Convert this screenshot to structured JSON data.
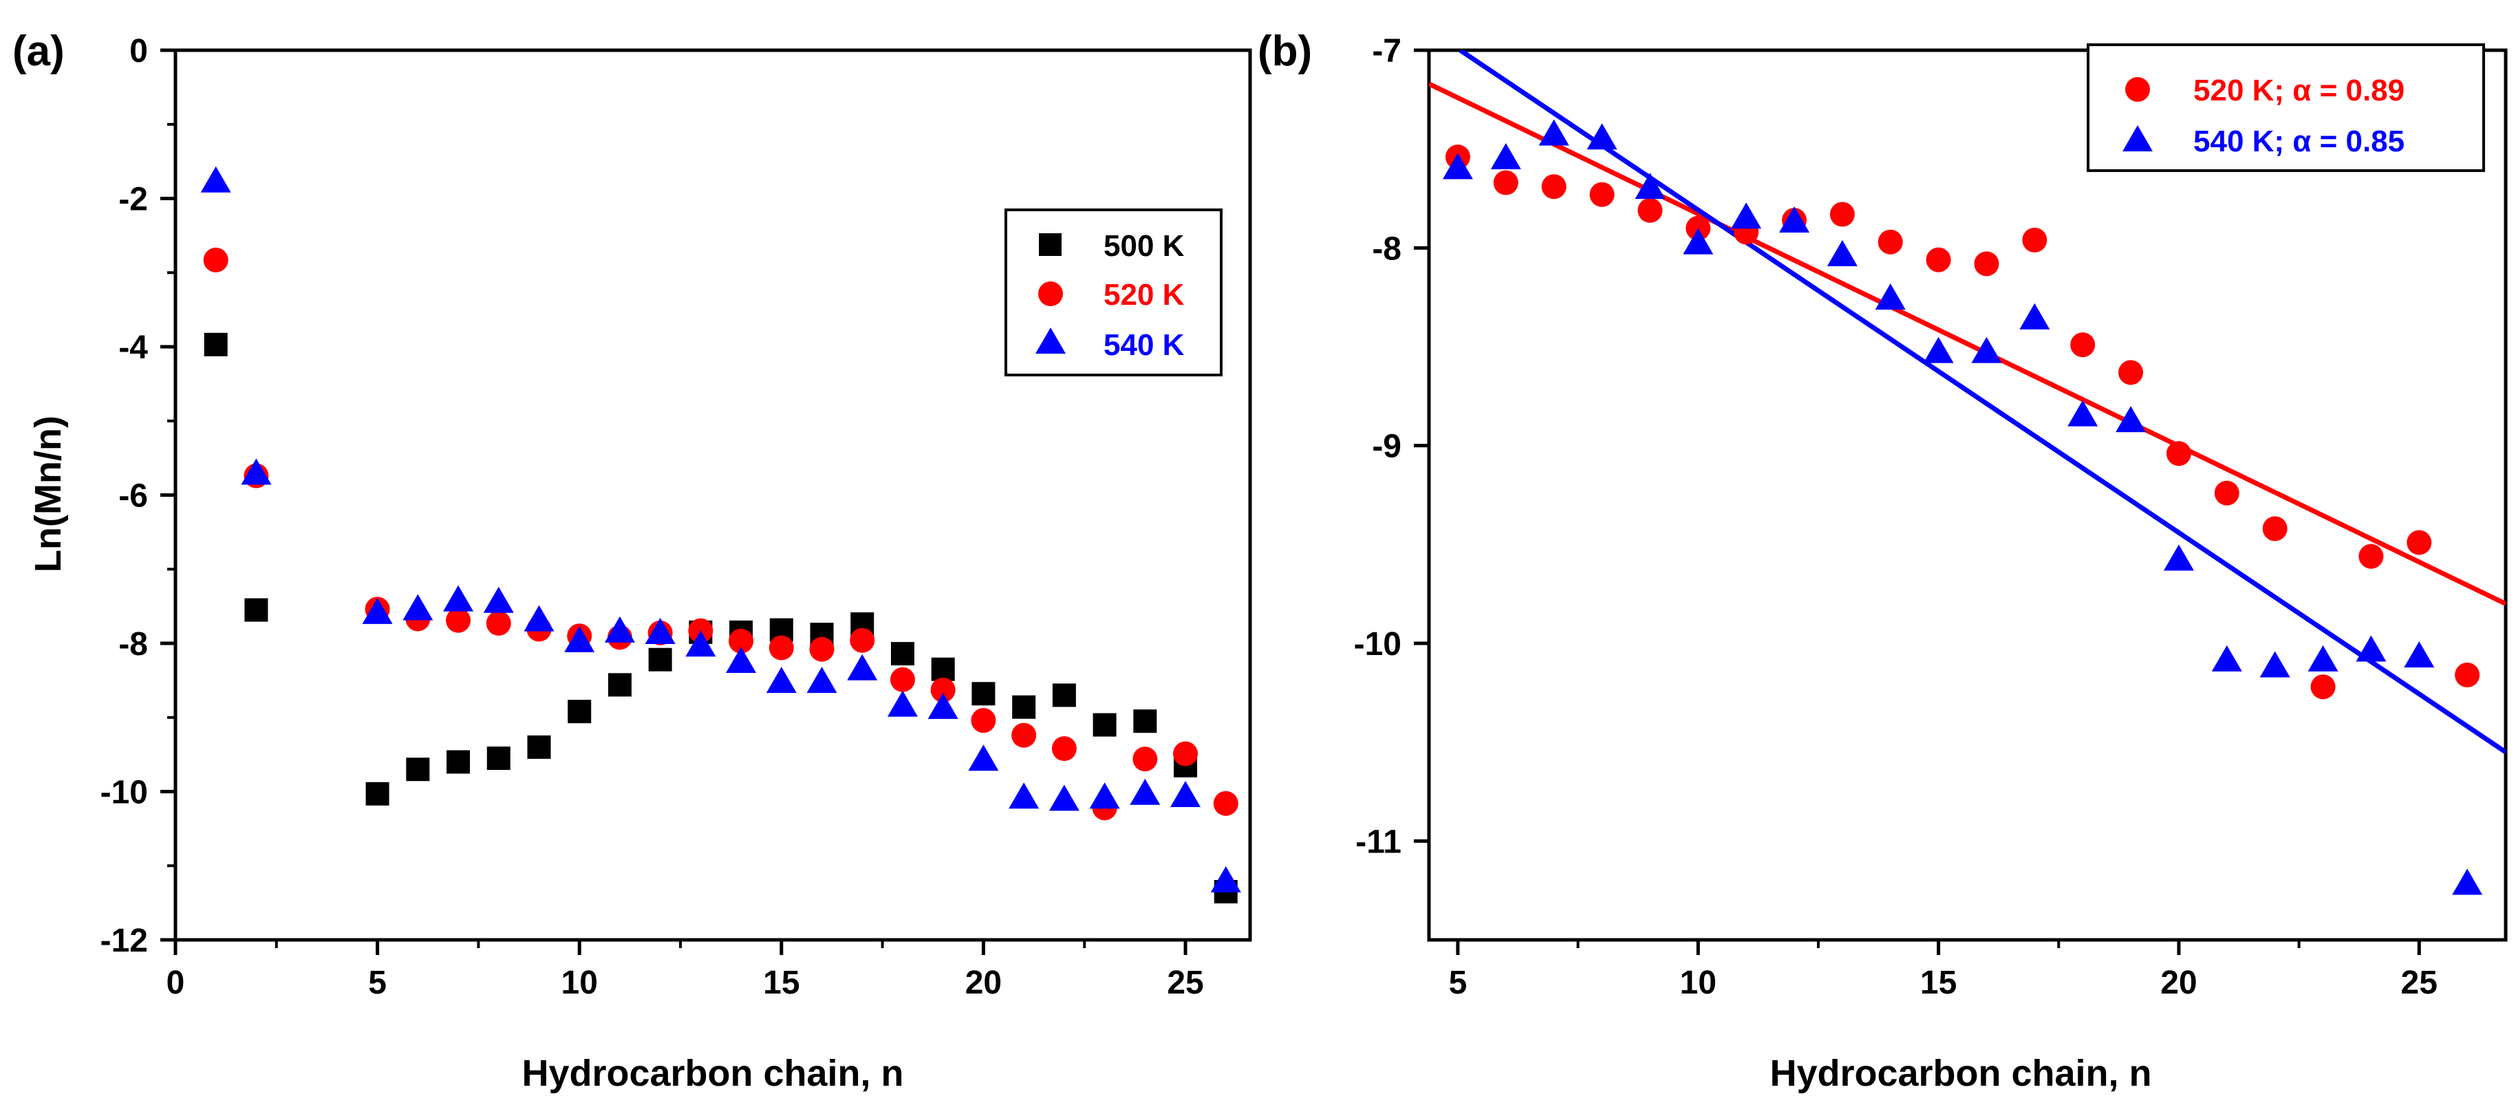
{
  "chart_data": [
    {
      "panel_label": "(a)",
      "type": "scatter",
      "title": "",
      "xlabel": "Hydrocarbon chain, n",
      "ylabel": "Ln(Mn/n)",
      "xlim": [
        0,
        26.6
      ],
      "ylim": [
        -12,
        0
      ],
      "x_ticks": [
        0,
        5,
        10,
        15,
        20,
        25
      ],
      "y_ticks": [
        0,
        -2,
        -4,
        -6,
        -8,
        -10,
        -12
      ],
      "x_tick_labels": [
        "0",
        "5",
        "10",
        "15",
        "20",
        "25"
      ],
      "y_tick_labels": [
        "0",
        "-2",
        "-4",
        "-6",
        "-8",
        "-10",
        "-12"
      ],
      "legend_position": "upper-right",
      "series": [
        {
          "name": "500 K",
          "marker": "square",
          "color": "#000000",
          "x": [
            1,
            2,
            5,
            6,
            7,
            8,
            9,
            10,
            11,
            12,
            13,
            14,
            15,
            16,
            17,
            18,
            19,
            20,
            21,
            22,
            23,
            24,
            25,
            26
          ],
          "y": [
            -3.97,
            -7.55,
            -10.03,
            -9.7,
            -9.6,
            -9.55,
            -9.4,
            -8.92,
            -8.56,
            -8.22,
            -7.85,
            -7.85,
            -7.82,
            -7.88,
            -7.74,
            -8.14,
            -8.35,
            -8.68,
            -8.86,
            -8.7,
            -9.1,
            -9.05,
            -9.65,
            -11.35
          ]
        },
        {
          "name": "520 K",
          "marker": "circle",
          "color": "#ff0000",
          "x": [
            1,
            2,
            5,
            6,
            7,
            8,
            9,
            10,
            11,
            12,
            13,
            14,
            15,
            16,
            17,
            18,
            19,
            20,
            21,
            22,
            23,
            24,
            25,
            26
          ],
          "y": [
            -2.83,
            -5.74,
            -7.54,
            -7.67,
            -7.69,
            -7.73,
            -7.81,
            -7.9,
            -7.92,
            -7.86,
            -7.83,
            -7.97,
            -8.06,
            -8.08,
            -7.96,
            -8.49,
            -8.63,
            -9.04,
            -9.24,
            -9.42,
            -10.22,
            -9.56,
            -9.49,
            -10.16
          ]
        },
        {
          "name": "540 K",
          "marker": "triangle",
          "color": "#0000ff",
          "x": [
            1,
            2,
            5,
            6,
            7,
            8,
            9,
            10,
            11,
            12,
            13,
            14,
            15,
            16,
            17,
            18,
            19,
            20,
            21,
            22,
            23,
            24,
            25,
            26
          ],
          "y": [
            -1.78,
            -5.72,
            -7.6,
            -7.55,
            -7.43,
            -7.45,
            -7.7,
            -7.98,
            -7.85,
            -7.87,
            -8.04,
            -8.26,
            -8.53,
            -8.53,
            -8.36,
            -8.85,
            -8.88,
            -9.58,
            -10.09,
            -10.12,
            -10.09,
            -10.04,
            -10.07,
            -11.22
          ]
        }
      ]
    },
    {
      "panel_label": "(b)",
      "type": "scatter",
      "title": "",
      "xlabel": "Hydrocarbon chain, n",
      "ylabel": "",
      "xlim": [
        4.4,
        26.8
      ],
      "ylim": [
        -11.5,
        -7
      ],
      "x_ticks": [
        5,
        10,
        15,
        20,
        25
      ],
      "y_ticks": [
        -7,
        -8,
        -9,
        -10,
        -11
      ],
      "x_tick_labels": [
        "5",
        "10",
        "15",
        "20",
        "25"
      ],
      "y_tick_labels": [
        "-7",
        "-8",
        "-9",
        "-10",
        "-11"
      ],
      "legend_position": "upper-right",
      "series": [
        {
          "name": "520 K; ",
          "alpha_label": "α = 0.89",
          "marker": "circle",
          "color": "#ff0000",
          "x": [
            5,
            6,
            7,
            8,
            9,
            10,
            11,
            12,
            13,
            14,
            15,
            16,
            17,
            18,
            19,
            20,
            21,
            22,
            23,
            24,
            25,
            26
          ],
          "y": [
            -7.54,
            -7.67,
            -7.69,
            -7.73,
            -7.81,
            -7.9,
            -7.92,
            -7.86,
            -7.83,
            -7.97,
            -8.06,
            -8.08,
            -7.96,
            -8.49,
            -8.63,
            -9.04,
            -9.24,
            -9.42,
            -10.22,
            -9.56,
            -9.49,
            -10.16
          ],
          "fit_line": {
            "x": [
              4.4,
              26.8
            ],
            "y": [
              -7.17,
              -9.8
            ]
          }
        },
        {
          "name": "540 K; ",
          "alpha_label": "α = 0.85",
          "marker": "triangle",
          "color": "#0000ff",
          "x": [
            5,
            6,
            7,
            8,
            9,
            10,
            11,
            12,
            13,
            14,
            15,
            16,
            17,
            18,
            19,
            20,
            21,
            22,
            23,
            24,
            25,
            26
          ],
          "y": [
            -7.6,
            -7.55,
            -7.43,
            -7.45,
            -7.7,
            -7.98,
            -7.85,
            -7.87,
            -8.04,
            -8.26,
            -8.53,
            -8.53,
            -8.36,
            -8.85,
            -8.88,
            -9.58,
            -10.09,
            -10.12,
            -10.09,
            -10.04,
            -10.07,
            -11.22
          ],
          "fit_line": {
            "x": [
              5.05,
              26.8
            ],
            "y": [
              -7.0,
              -10.55
            ]
          }
        }
      ]
    }
  ]
}
